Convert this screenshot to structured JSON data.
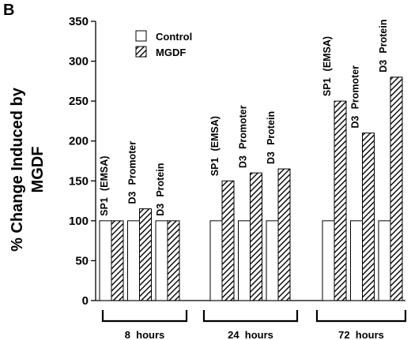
{
  "panel_label": "B",
  "chart_data": {
    "type": "bar",
    "title": "",
    "ylabel": "% Change Induced by MGDF",
    "ylabel_lines": [
      "% Change Induced by",
      "MGDF"
    ],
    "xlabel": "",
    "ylim": [
      0,
      350
    ],
    "yticks": [
      0,
      50,
      100,
      150,
      200,
      250,
      300,
      350
    ],
    "grid": false,
    "legend_position": "top-left",
    "groups": [
      "8 hours",
      "24 hours",
      "72 hours"
    ],
    "categories": [
      "SP1 (EMSA)",
      "D3 Promoter",
      "D3 Protein",
      "SP1 (EMSA)",
      "D3 Promoter",
      "D3 Protein",
      "SP1 (EMSA)",
      "D3 Promoter",
      "D3 Protein"
    ],
    "category_words": [
      [
        "SP1",
        "(EMSA)"
      ],
      [
        "D3",
        "Promoter"
      ],
      [
        "D3",
        "Protein"
      ],
      [
        "SP1",
        "(EMSA)"
      ],
      [
        "D3",
        "Promoter"
      ],
      [
        "D3",
        "Protein"
      ],
      [
        "SP1",
        "(EMSA)"
      ],
      [
        "D3",
        "Promoter"
      ],
      [
        "D3",
        "Protein"
      ]
    ],
    "series": [
      {
        "name": "Control",
        "values": [
          100,
          100,
          100,
          100,
          100,
          100,
          100,
          100,
          100
        ],
        "fill": "#ffffff"
      },
      {
        "name": "MGDF",
        "values": [
          100,
          115,
          100,
          150,
          160,
          165,
          250,
          210,
          280
        ],
        "fill": "hatch"
      }
    ],
    "colors": {
      "axis": "#000000",
      "bar_stroke": "#000000",
      "control_fill": "#ffffff",
      "hatch": "#000000"
    }
  }
}
